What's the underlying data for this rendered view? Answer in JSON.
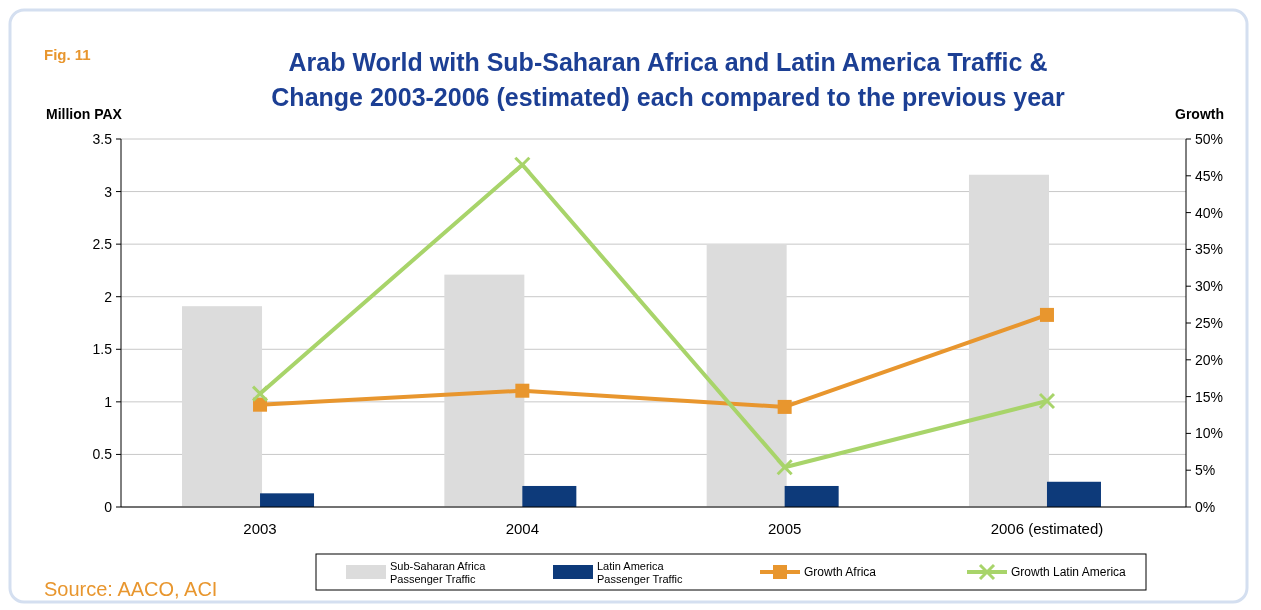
{
  "chart_data": {
    "type": "bar",
    "title": "Arab World with Sub-Saharan Africa and Latin America Traffic & Change 2003-2006 (estimated) each compared to the previous year",
    "ylabel": "Million PAX",
    "y2label": "Growth",
    "categories": [
      "2003",
      "2004",
      "2005",
      "2006 (estimated)"
    ],
    "series": [
      {
        "name": "Sub-Saharan Africa Passenger Traffic",
        "color": "#dcdcdc",
        "values": [
          1.91,
          2.21,
          2.5,
          3.16
        ]
      },
      {
        "name": "Latin America Passenger Traffic",
        "color": "#0d3a7a",
        "values": [
          0.13,
          0.2,
          0.2,
          0.24
        ]
      },
      {
        "name": "Growth Africa",
        "type": "line",
        "axis": "y2",
        "marker": "square",
        "color": "#e8962e",
        "values": [
          13.9,
          15.8,
          13.6,
          26.1
        ]
      },
      {
        "name": "Growth Latin America",
        "type": "line",
        "axis": "y2",
        "marker": "cross",
        "color": "#a8d46a",
        "values": [
          15.4,
          46.5,
          5.4,
          14.4
        ]
      }
    ],
    "ylim": [
      0,
      3.5
    ],
    "yticks": [
      0,
      0.5,
      1,
      1.5,
      2,
      2.5,
      3,
      3.5
    ],
    "y2lim": [
      0,
      50
    ],
    "y2ticks": [
      {
        "value": 0,
        "label": "0%"
      },
      {
        "value": 5,
        "label": "5%"
      },
      {
        "value": 10,
        "label": "10%"
      },
      {
        "value": 15,
        "label": "15%"
      },
      {
        "value": 20,
        "label": "20%"
      },
      {
        "value": 25,
        "label": "25%"
      },
      {
        "value": 30,
        "label": "30%"
      },
      {
        "value": 35,
        "label": "35%"
      },
      {
        "value": 40,
        "label": "40%"
      },
      {
        "value": 45,
        "label": "45%"
      },
      {
        "value": 50,
        "label": "50%"
      }
    ],
    "grid": "y",
    "legend": "bottom",
    "annotations": [
      "Fig. 11",
      "Source: AACO, ACI"
    ]
  }
}
